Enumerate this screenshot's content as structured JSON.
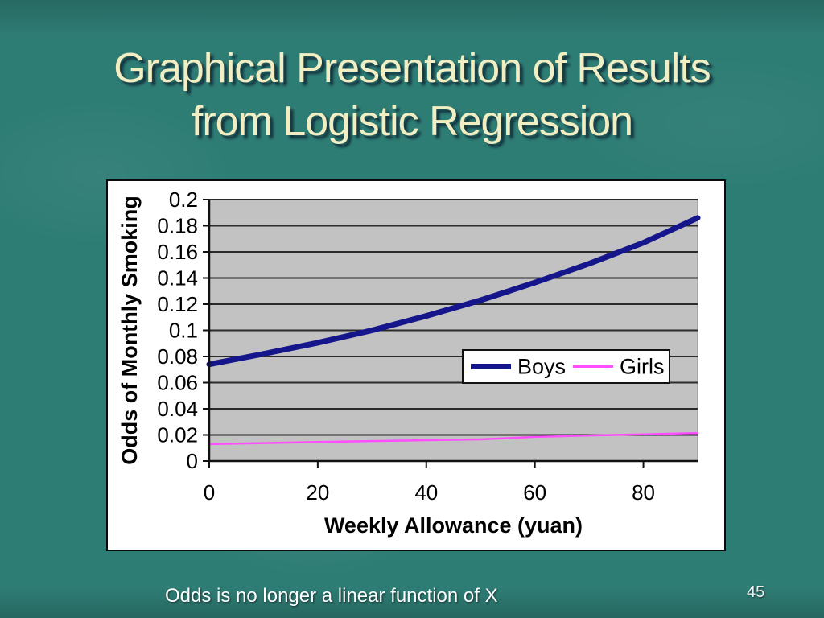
{
  "slide": {
    "title_line1": "Graphical Presentation of Results",
    "title_line2": "from Logistic Regression",
    "title_color": "#F2EEC4",
    "background_color": "#2E7D75",
    "caption": "Odds is no longer a linear function of X",
    "page_number": "45"
  },
  "chart_data": {
    "type": "line",
    "title": "",
    "xlabel": "Weekly Allowance (yuan)",
    "ylabel": "Odds of Monthly Smoking",
    "x": [
      0,
      10,
      20,
      30,
      40,
      50,
      60,
      70,
      80,
      90
    ],
    "series": [
      {
        "name": "Boys",
        "color": "#16168C",
        "line_width": 7,
        "values": [
          0.074,
          0.082,
          0.0905,
          0.1,
          0.111,
          0.123,
          0.1365,
          0.151,
          0.167,
          0.186
        ]
      },
      {
        "name": "Girls",
        "color": "#FF4DFF",
        "line_width": 2.5,
        "values": [
          0.013,
          0.0138,
          0.0146,
          0.0153,
          0.016,
          0.0166,
          0.0185,
          0.0196,
          0.0205,
          0.0215
        ]
      }
    ],
    "xlim": [
      0,
      90
    ],
    "ylim": [
      0,
      0.2
    ],
    "xticks": [
      0,
      20,
      40,
      60,
      80
    ],
    "xtick_labels": [
      "0",
      "20",
      "40",
      "60",
      "80"
    ],
    "yticks": [
      0,
      0.02,
      0.04,
      0.06,
      0.08,
      0.1,
      0.12,
      0.14,
      0.16,
      0.18,
      0.2
    ],
    "ytick_labels": [
      "0",
      "0.02",
      "0.04",
      "0.06",
      "0.08",
      "0.1",
      "0.12",
      "0.14",
      "0.16",
      "0.18",
      "0.2"
    ],
    "grid": "horizontal-y",
    "plot_bg_color": "#C2C2C2",
    "gridline_color": "#2B2B2B",
    "axis_color": "#111111",
    "legend": {
      "position": "inside-right",
      "entries": [
        "Boys",
        "Girls"
      ]
    }
  }
}
